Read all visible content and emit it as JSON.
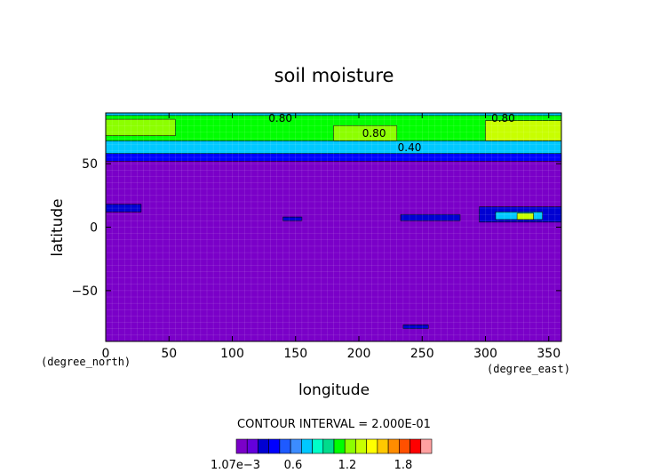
{
  "chart_data": {
    "type": "heatmap",
    "title": "soil moisture",
    "xlabel": "longitude",
    "ylabel": "latitude",
    "x_unit": "(degree_east)",
    "y_unit": "(degree_north)",
    "xlim": [
      0,
      360
    ],
    "ylim": [
      -90,
      90
    ],
    "x_ticks": [
      {
        "value": 0,
        "label": "0"
      },
      {
        "value": 50,
        "label": "50"
      },
      {
        "value": 100,
        "label": "100"
      },
      {
        "value": 150,
        "label": "150"
      },
      {
        "value": 200,
        "label": "200"
      },
      {
        "value": 250,
        "label": "250"
      },
      {
        "value": 300,
        "label": "300"
      },
      {
        "value": 350,
        "label": "350"
      }
    ],
    "y_ticks": [
      {
        "value": 50,
        "label": "50"
      },
      {
        "value": 0,
        "label": "0"
      },
      {
        "value": -50,
        "label": "−50"
      }
    ],
    "contour_labels": [
      {
        "text": "0.80",
        "lon": 138,
        "lat": 83
      },
      {
        "text": "0.80",
        "lon": 212,
        "lat": 71
      },
      {
        "text": "0.40",
        "lon": 240,
        "lat": 60
      },
      {
        "text": "0.80",
        "lon": 314,
        "lat": 83
      }
    ],
    "regions": [
      {
        "lon": [
          0,
          360
        ],
        "lat": [
          52,
          90
        ],
        "value": 0.35
      },
      {
        "lon": [
          0,
          360
        ],
        "lat": [
          58,
          90
        ],
        "value": 0.65
      },
      {
        "lon": [
          0,
          360
        ],
        "lat": [
          68,
          88
        ],
        "value": 0.9
      },
      {
        "lon": [
          0,
          55
        ],
        "lat": [
          72,
          85
        ],
        "value": 1.05
      },
      {
        "lon": [
          180,
          230
        ],
        "lat": [
          68,
          80
        ],
        "value": 1.05
      },
      {
        "lon": [
          300,
          360
        ],
        "lat": [
          68,
          84
        ],
        "value": 1.1
      },
      {
        "lon": [
          0,
          28
        ],
        "lat": [
          12,
          18
        ],
        "value": 0.3
      },
      {
        "lon": [
          233,
          280
        ],
        "lat": [
          5,
          10
        ],
        "value": 0.3
      },
      {
        "lon": [
          295,
          360
        ],
        "lat": [
          4,
          16
        ],
        "value": 0.3
      },
      {
        "lon": [
          308,
          345
        ],
        "lat": [
          6,
          12
        ],
        "value": 0.7
      },
      {
        "lon": [
          325,
          338
        ],
        "lat": [
          6,
          11
        ],
        "value": 1.2
      },
      {
        "lon": [
          140,
          155
        ],
        "lat": [
          5,
          8
        ],
        "value": 0.3
      },
      {
        "lon": [
          235,
          255
        ],
        "lat": [
          -80,
          -77
        ],
        "value": 0.3
      }
    ],
    "contour_interval_text": "CONTOUR INTERVAL = 2.000E-01",
    "colorbar": {
      "colors": [
        "#7a00c8",
        "#6400dc",
        "#0000d2",
        "#0000ff",
        "#1e5aff",
        "#3c8cff",
        "#00c8ff",
        "#00ffc8",
        "#00dc8c",
        "#00ff00",
        "#8cff00",
        "#c8ff00",
        "#ffff00",
        "#ffc800",
        "#ff8c00",
        "#ff5000",
        "#ff0000",
        "#ffa0a0"
      ],
      "tick_labels": [
        "1.07e−3",
        "0.6",
        "1.2",
        "1.8"
      ],
      "tick_values": [
        0.00107,
        0.6,
        1.2,
        1.8
      ]
    }
  }
}
